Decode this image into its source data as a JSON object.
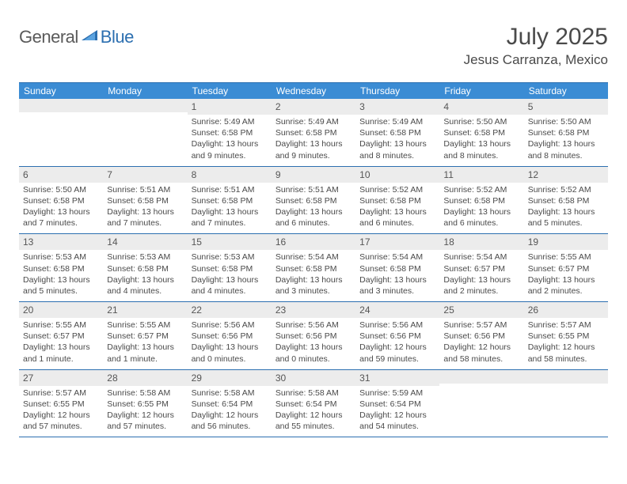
{
  "logo": {
    "part1": "General",
    "part2": "Blue"
  },
  "title": "July 2025",
  "location": "Jesus Carranza, Mexico",
  "colors": {
    "header_bg": "#3b8cd4",
    "border": "#2c6fb0",
    "daynum_bg": "#ececec",
    "text": "#4a4a4a"
  },
  "day_headers": [
    "Sunday",
    "Monday",
    "Tuesday",
    "Wednesday",
    "Thursday",
    "Friday",
    "Saturday"
  ],
  "weeks": [
    [
      null,
      null,
      {
        "n": "1",
        "sr": "5:49 AM",
        "ss": "6:58 PM",
        "dl": "13 hours and 9 minutes."
      },
      {
        "n": "2",
        "sr": "5:49 AM",
        "ss": "6:58 PM",
        "dl": "13 hours and 9 minutes."
      },
      {
        "n": "3",
        "sr": "5:49 AM",
        "ss": "6:58 PM",
        "dl": "13 hours and 8 minutes."
      },
      {
        "n": "4",
        "sr": "5:50 AM",
        "ss": "6:58 PM",
        "dl": "13 hours and 8 minutes."
      },
      {
        "n": "5",
        "sr": "5:50 AM",
        "ss": "6:58 PM",
        "dl": "13 hours and 8 minutes."
      }
    ],
    [
      {
        "n": "6",
        "sr": "5:50 AM",
        "ss": "6:58 PM",
        "dl": "13 hours and 7 minutes."
      },
      {
        "n": "7",
        "sr": "5:51 AM",
        "ss": "6:58 PM",
        "dl": "13 hours and 7 minutes."
      },
      {
        "n": "8",
        "sr": "5:51 AM",
        "ss": "6:58 PM",
        "dl": "13 hours and 7 minutes."
      },
      {
        "n": "9",
        "sr": "5:51 AM",
        "ss": "6:58 PM",
        "dl": "13 hours and 6 minutes."
      },
      {
        "n": "10",
        "sr": "5:52 AM",
        "ss": "6:58 PM",
        "dl": "13 hours and 6 minutes."
      },
      {
        "n": "11",
        "sr": "5:52 AM",
        "ss": "6:58 PM",
        "dl": "13 hours and 6 minutes."
      },
      {
        "n": "12",
        "sr": "5:52 AM",
        "ss": "6:58 PM",
        "dl": "13 hours and 5 minutes."
      }
    ],
    [
      {
        "n": "13",
        "sr": "5:53 AM",
        "ss": "6:58 PM",
        "dl": "13 hours and 5 minutes."
      },
      {
        "n": "14",
        "sr": "5:53 AM",
        "ss": "6:58 PM",
        "dl": "13 hours and 4 minutes."
      },
      {
        "n": "15",
        "sr": "5:53 AM",
        "ss": "6:58 PM",
        "dl": "13 hours and 4 minutes."
      },
      {
        "n": "16",
        "sr": "5:54 AM",
        "ss": "6:58 PM",
        "dl": "13 hours and 3 minutes."
      },
      {
        "n": "17",
        "sr": "5:54 AM",
        "ss": "6:58 PM",
        "dl": "13 hours and 3 minutes."
      },
      {
        "n": "18",
        "sr": "5:54 AM",
        "ss": "6:57 PM",
        "dl": "13 hours and 2 minutes."
      },
      {
        "n": "19",
        "sr": "5:55 AM",
        "ss": "6:57 PM",
        "dl": "13 hours and 2 minutes."
      }
    ],
    [
      {
        "n": "20",
        "sr": "5:55 AM",
        "ss": "6:57 PM",
        "dl": "13 hours and 1 minute."
      },
      {
        "n": "21",
        "sr": "5:55 AM",
        "ss": "6:57 PM",
        "dl": "13 hours and 1 minute."
      },
      {
        "n": "22",
        "sr": "5:56 AM",
        "ss": "6:56 PM",
        "dl": "13 hours and 0 minutes."
      },
      {
        "n": "23",
        "sr": "5:56 AM",
        "ss": "6:56 PM",
        "dl": "13 hours and 0 minutes."
      },
      {
        "n": "24",
        "sr": "5:56 AM",
        "ss": "6:56 PM",
        "dl": "12 hours and 59 minutes."
      },
      {
        "n": "25",
        "sr": "5:57 AM",
        "ss": "6:56 PM",
        "dl": "12 hours and 58 minutes."
      },
      {
        "n": "26",
        "sr": "5:57 AM",
        "ss": "6:55 PM",
        "dl": "12 hours and 58 minutes."
      }
    ],
    [
      {
        "n": "27",
        "sr": "5:57 AM",
        "ss": "6:55 PM",
        "dl": "12 hours and 57 minutes."
      },
      {
        "n": "28",
        "sr": "5:58 AM",
        "ss": "6:55 PM",
        "dl": "12 hours and 57 minutes."
      },
      {
        "n": "29",
        "sr": "5:58 AM",
        "ss": "6:54 PM",
        "dl": "12 hours and 56 minutes."
      },
      {
        "n": "30",
        "sr": "5:58 AM",
        "ss": "6:54 PM",
        "dl": "12 hours and 55 minutes."
      },
      {
        "n": "31",
        "sr": "5:59 AM",
        "ss": "6:54 PM",
        "dl": "12 hours and 54 minutes."
      },
      null,
      null
    ]
  ],
  "labels": {
    "sunrise": "Sunrise:",
    "sunset": "Sunset:",
    "daylight": "Daylight:"
  }
}
